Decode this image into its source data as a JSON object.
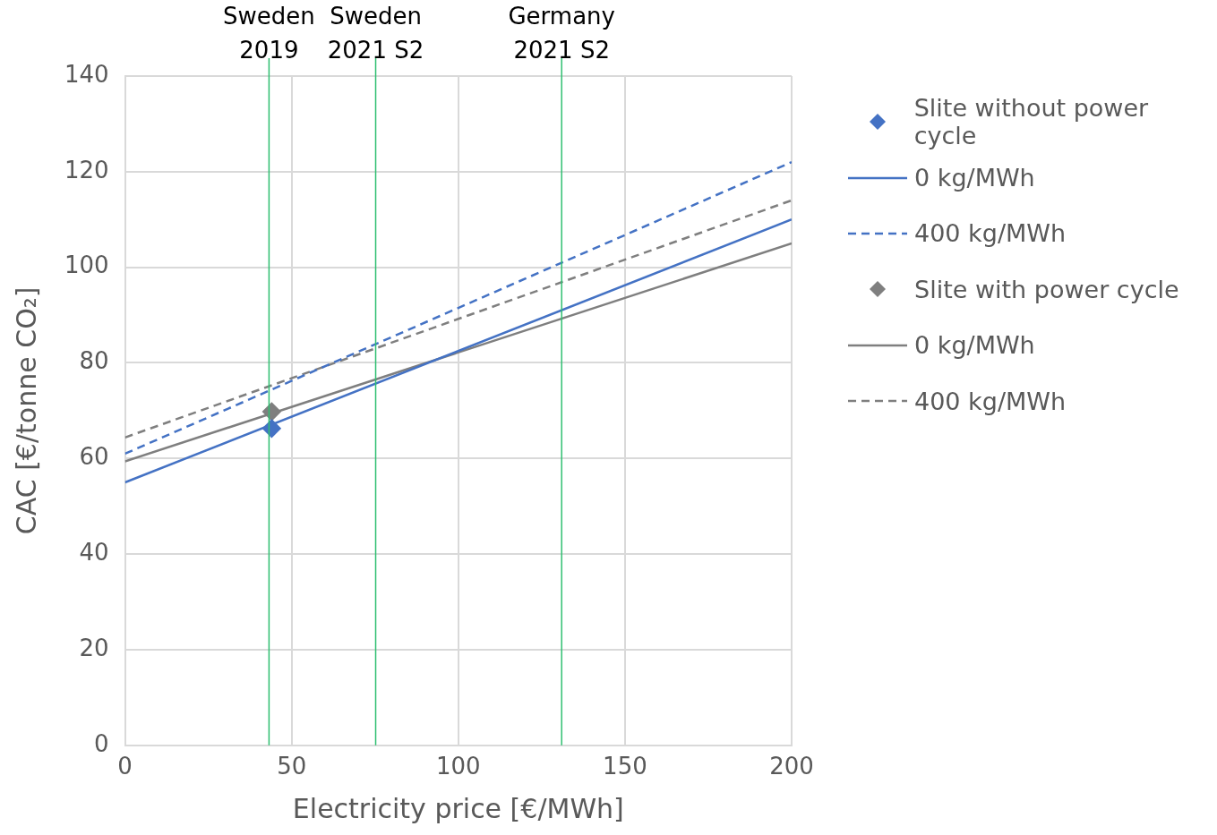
{
  "chart_data": {
    "type": "line",
    "xlabel": "Electricity price [€/MWh]",
    "ylabel": "CAC [€/tonne CO₂]",
    "xlim": [
      0,
      200
    ],
    "xticks": [
      0,
      50,
      100,
      150,
      200
    ],
    "ylim": [
      0,
      140
    ],
    "yticks": [
      0,
      20,
      40,
      60,
      80,
      100,
      120,
      140
    ],
    "grid": true,
    "legend": "right",
    "series": [
      {
        "name": "Slite without power cycle",
        "type": "scatter",
        "marker": "diamond",
        "color": "#4472c4",
        "x": [
          44
        ],
        "values": [
          66.3
        ]
      },
      {
        "name": "0 kg/MWh",
        "color": "#4472c4",
        "line_style": "solid",
        "marker": "none",
        "x": [
          0,
          200
        ],
        "values": [
          55,
          110
        ]
      },
      {
        "name": "400 kg/MWh",
        "color": "#4472c4",
        "line_style": "dashed",
        "marker": "none",
        "x": [
          0,
          200
        ],
        "values": [
          61,
          122
        ]
      },
      {
        "name": "Slite with power cycle",
        "type": "scatter",
        "marker": "diamond",
        "color": "#7f7f7f",
        "x": [
          44
        ],
        "values": [
          69.8
        ]
      },
      {
        "name": "0 kg/MWh",
        "color": "#7f7f7f",
        "line_style": "solid",
        "marker": "none",
        "x": [
          0,
          200
        ],
        "values": [
          59.4,
          105
        ]
      },
      {
        "name": "400 kg/MWh",
        "color": "#7f7f7f",
        "line_style": "dashed",
        "marker": "none",
        "x": [
          0,
          200
        ],
        "values": [
          64.4,
          114
        ]
      }
    ],
    "ref_lines": [
      {
        "axis": "x",
        "value": 43.2,
        "label": "Sweden 2019",
        "color": "#2fbf71"
      },
      {
        "axis": "x",
        "value": 75.2,
        "label": "Sweden 2021 S2",
        "color": "#2fbf71"
      },
      {
        "axis": "x",
        "value": 131,
        "label": "Germany 2021 S2",
        "color": "#2fbf71"
      }
    ]
  }
}
